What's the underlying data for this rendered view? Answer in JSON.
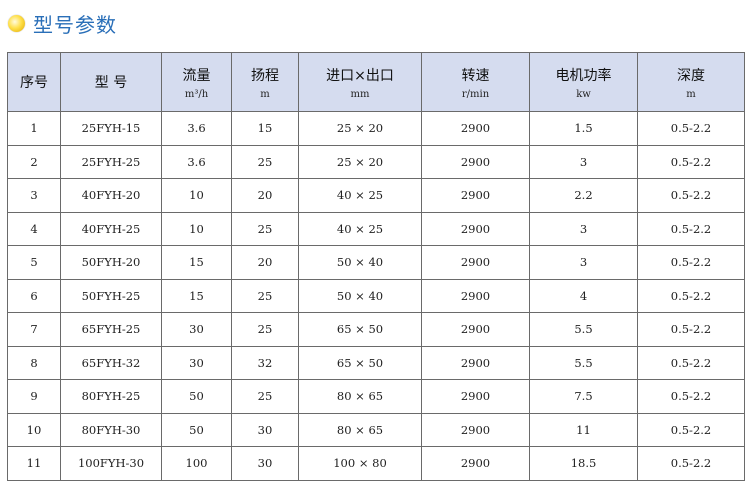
{
  "title": "型号参数",
  "headers": [
    {
      "label": "序号",
      "unit": ""
    },
    {
      "label": "型 号",
      "unit": ""
    },
    {
      "label": "流量",
      "unit": "m³/h"
    },
    {
      "label": "扬程",
      "unit": "m"
    },
    {
      "label": "进口×出口",
      "unit": "mm"
    },
    {
      "label": "转速",
      "unit": "r/min"
    },
    {
      "label": "电机功率",
      "unit": "kw"
    },
    {
      "label": "深度",
      "unit": "m"
    }
  ],
  "rows": [
    [
      "1",
      "25FYH-15",
      "3.6",
      "15",
      "25 × 20",
      "2900",
      "1.5",
      "0.5-2.2"
    ],
    [
      "2",
      "25FYH-25",
      "3.6",
      "25",
      "25 × 20",
      "2900",
      "3",
      "0.5-2.2"
    ],
    [
      "3",
      "40FYH-20",
      "10",
      "20",
      "40 × 25",
      "2900",
      "2.2",
      "0.5-2.2"
    ],
    [
      "4",
      "40FYH-25",
      "10",
      "25",
      "40 × 25",
      "2900",
      "3",
      "0.5-2.2"
    ],
    [
      "5",
      "50FYH-20",
      "15",
      "20",
      "50 × 40",
      "2900",
      "3",
      "0.5-2.2"
    ],
    [
      "6",
      "50FYH-25",
      "15",
      "25",
      "50 × 40",
      "2900",
      "4",
      "0.5-2.2"
    ],
    [
      "7",
      "65FYH-25",
      "30",
      "25",
      "65 × 50",
      "2900",
      "5.5",
      "0.5-2.2"
    ],
    [
      "8",
      "65FYH-32",
      "30",
      "32",
      "65 × 50",
      "2900",
      "5.5",
      "0.5-2.2"
    ],
    [
      "9",
      "80FYH-25",
      "50",
      "25",
      "80 × 65",
      "2900",
      "7.5",
      "0.5-2.2"
    ],
    [
      "10",
      "80FYH-30",
      "50",
      "30",
      "80 × 65",
      "2900",
      "11",
      "0.5-2.2"
    ],
    [
      "11",
      "100FYH-30",
      "100",
      "30",
      "100 × 80",
      "2900",
      "18.5",
      "0.5-2.2"
    ]
  ]
}
